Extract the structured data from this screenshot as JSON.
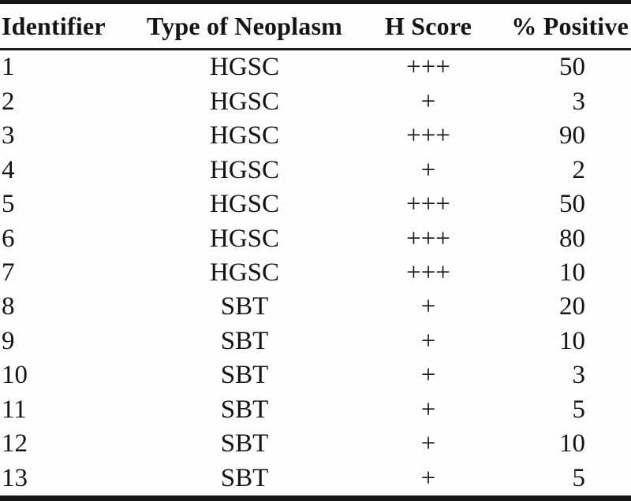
{
  "colors": {
    "background": "#fdfdfd",
    "text": "#141414",
    "rule": "#161616"
  },
  "table": {
    "columns": [
      {
        "label": "Identifier",
        "align": "left"
      },
      {
        "label": "Type of Neoplasm",
        "align": "center"
      },
      {
        "label": "H Score",
        "align": "center"
      },
      {
        "label": "% Positive",
        "align": "right"
      }
    ],
    "rows": [
      [
        "1",
        "HGSC",
        "+++",
        "50"
      ],
      [
        "2",
        "HGSC",
        "+",
        "3"
      ],
      [
        "3",
        "HGSC",
        "+++",
        "90"
      ],
      [
        "4",
        "HGSC",
        "+",
        "2"
      ],
      [
        "5",
        "HGSC",
        "+++",
        "50"
      ],
      [
        "6",
        "HGSC",
        "+++",
        "80"
      ],
      [
        "7",
        "HGSC",
        "+++",
        "10"
      ],
      [
        "8",
        "SBT",
        "+",
        "20"
      ],
      [
        "9",
        "SBT",
        "+",
        "10"
      ],
      [
        "10",
        "SBT",
        "+",
        "3"
      ],
      [
        "11",
        "SBT",
        "+",
        "5"
      ],
      [
        "12",
        "SBT",
        "+",
        "10"
      ],
      [
        "13",
        "SBT",
        "+",
        "5"
      ]
    ]
  }
}
